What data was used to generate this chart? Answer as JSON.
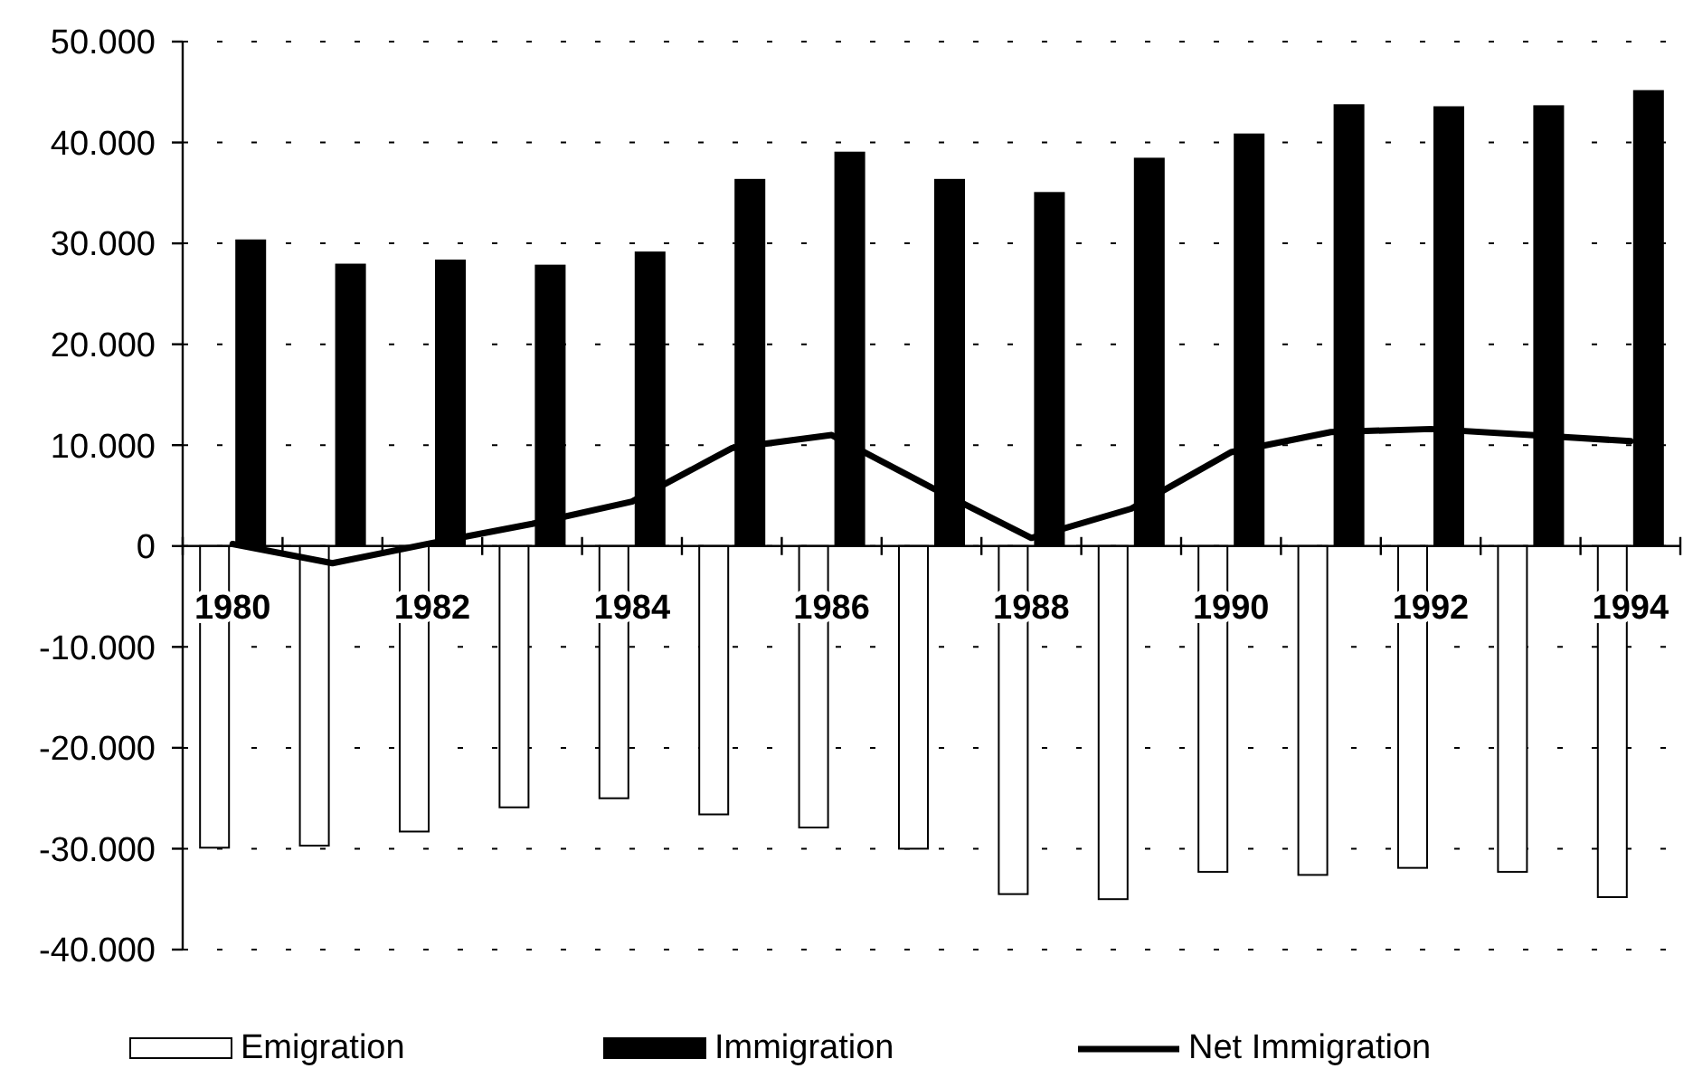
{
  "chart_data": {
    "type": "bar",
    "categories": [
      "1980",
      null,
      "1982",
      null,
      "1984",
      null,
      "1986",
      null,
      "1988",
      null,
      "1990",
      null,
      "1992",
      null,
      "1994"
    ],
    "series": [
      {
        "name": "Emigration",
        "color": "#ffffff",
        "values": [
          -29900,
          -29700,
          -28300,
          -25900,
          -25000,
          -26600,
          -27900,
          -30000,
          -34500,
          -35000,
          -32300,
          -32600,
          -31900,
          -32300,
          -34800
        ]
      },
      {
        "name": "Immigration",
        "color": "#000000",
        "values": [
          30300,
          27900,
          28300,
          27800,
          29100,
          36300,
          39000,
          36300,
          35000,
          38400,
          40800,
          43700,
          43500,
          43600,
          45100
        ]
      },
      {
        "name": "Net Immigration",
        "type": "line",
        "color": "#000000",
        "values": [
          200,
          -1700,
          300,
          2200,
          4400,
          9700,
          11000,
          5800,
          800,
          3700,
          9300,
          11300,
          11600,
          11000,
          10400
        ]
      }
    ],
    "ylim": [
      -40000,
      50000
    ],
    "yticks": [
      {
        "value": 50000,
        "label": "50.000"
      },
      {
        "value": 40000,
        "label": "40.000"
      },
      {
        "value": 30000,
        "label": "30.000"
      },
      {
        "value": 20000,
        "label": "20.000"
      },
      {
        "value": 10000,
        "label": "10.000"
      },
      0,
      {
        "value": -10000,
        "label": "-10.000"
      },
      {
        "value": -20000,
        "label": "-20.000"
      },
      {
        "value": -30000,
        "label": "-30.000"
      },
      {
        "value": -40000,
        "label": "-40.000"
      }
    ],
    "grid": "y",
    "legend": "bottom"
  }
}
